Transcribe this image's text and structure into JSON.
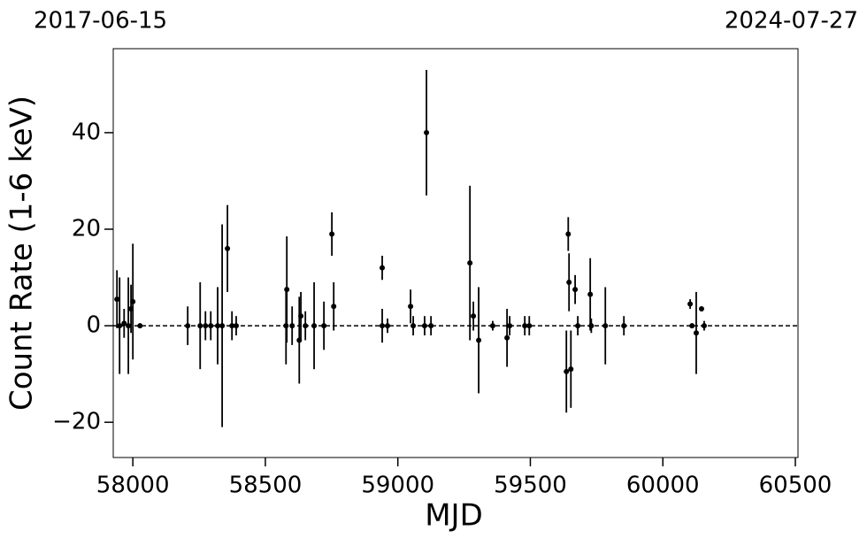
{
  "chart_data": {
    "type": "scatter",
    "top_labels": [
      "2017-06-15",
      "2024-07-27"
    ],
    "xlabel": "MJD",
    "ylabel": "Count Rate (1-6 keV)",
    "xlim": [
      57926,
      60510
    ],
    "ylim": [
      -27.3,
      57.4
    ],
    "xticks": [
      58000,
      58500,
      59000,
      59500,
      60000,
      60500
    ],
    "yticks": [
      {
        "value": -20,
        "label": "−20"
      },
      0,
      20,
      40
    ],
    "hline": 0,
    "color": "#000000",
    "x": [
      57940,
      57950,
      57967,
      57983,
      57993,
      58000,
      58027,
      58207,
      58254,
      58274,
      58294,
      58320,
      58337,
      58357,
      58374,
      58390,
      58578,
      58581,
      58601,
      58628,
      58634,
      58651,
      58684,
      58721,
      58751,
      58758,
      58941,
      58941,
      58961,
      59048,
      59058,
      59101,
      59108,
      59125,
      59272,
      59285,
      59305,
      59358,
      59412,
      59422,
      59479,
      59496,
      59636,
      59643,
      59646,
      59653,
      59669,
      59679,
      59726,
      59730,
      59783,
      59853,
      60103,
      60110,
      60126,
      60146,
      60156
    ],
    "values": [
      5.5,
      0,
      0.5,
      0,
      3.5,
      5,
      0,
      0,
      0,
      0,
      0,
      0,
      0,
      16,
      0,
      0,
      0,
      7.5,
      0,
      -3,
      2,
      0,
      0,
      0,
      19,
      4,
      12,
      0,
      0,
      4,
      0,
      0,
      40,
      0,
      13,
      2,
      -3,
      0,
      -2.5,
      0,
      0,
      0,
      -9.5,
      19,
      9,
      -9,
      7.5,
      0,
      6.5,
      0,
      0,
      0,
      4.5,
      0,
      -1.5,
      3.5,
      0
    ],
    "errors": [
      6,
      10,
      3,
      10,
      5,
      12,
      0.5,
      4,
      9,
      3,
      3,
      8,
      21,
      9,
      3,
      2,
      8,
      11,
      4,
      9,
      5,
      3,
      9,
      5,
      4.5,
      5,
      2.5,
      3.5,
      1.5,
      3.5,
      2,
      2,
      13,
      2,
      16,
      3,
      11,
      1,
      6,
      2,
      2,
      2,
      8.5,
      3.5,
      6,
      8,
      3,
      2,
      7.5,
      1.5,
      8,
      2,
      1,
      0.5,
      8.5,
      0.5,
      1
    ]
  }
}
